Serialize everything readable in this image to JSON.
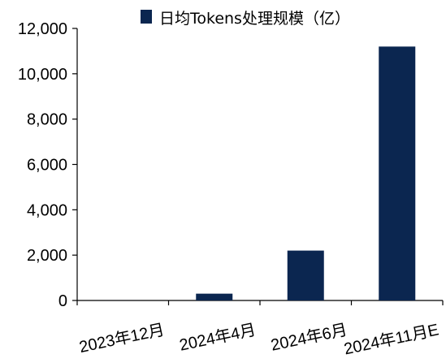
{
  "chart_data": {
    "type": "bar",
    "categories": [
      "2023年12月",
      "2024年4月",
      "2024年6月",
      "2024年11月E"
    ],
    "series": [
      {
        "name": "日均Tokens处理规模（亿）",
        "values": [
          1,
          300,
          2200,
          11200
        ],
        "color": "#0b2650"
      }
    ],
    "ylim": [
      0,
      12000
    ],
    "yticks": [
      0,
      2000,
      4000,
      6000,
      8000,
      10000,
      12000
    ],
    "ytick_labels": [
      "0",
      "2,000",
      "4,000",
      "6,000",
      "8,000",
      "10,000",
      "12,000"
    ],
    "legend_position": "top",
    "grid": false
  }
}
